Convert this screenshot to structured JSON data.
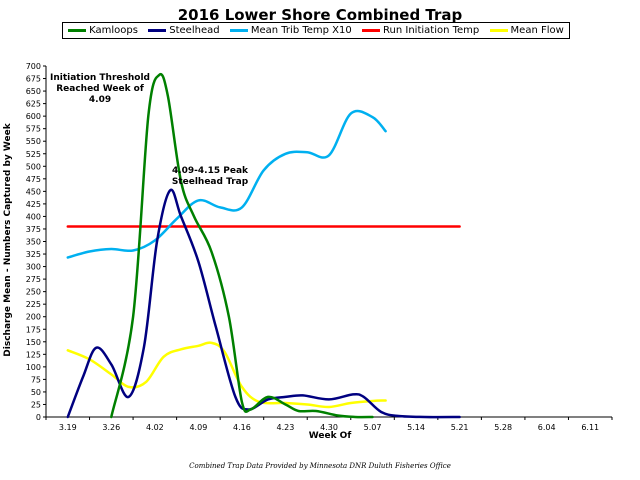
{
  "chart_data": {
    "type": "line",
    "title": "2016 Lower Shore Combined Trap",
    "xlabel": "Week Of",
    "ylabel": "Discharge Mean - Numbers Captured by Week",
    "categories": [
      "3.19",
      "3.26",
      "4.02",
      "4.09",
      "4.16",
      "4.23",
      "4.30",
      "5.07",
      "5.14",
      "5.21",
      "5.28",
      "6.04",
      "6.11"
    ],
    "yticks": [
      "0",
      "25",
      "50",
      "75",
      "100",
      "125",
      "150",
      "175",
      "200",
      "225",
      "250",
      "275",
      "300",
      "325",
      "350",
      "375",
      "400",
      "425",
      "450",
      "475",
      "500",
      "525",
      "550",
      "575",
      "600",
      "625",
      "650",
      "675",
      "700"
    ],
    "ylim": [
      0,
      700
    ],
    "grid": false,
    "legend_position": "top",
    "series": [
      {
        "name": "Kamloops",
        "color": "#008000",
        "points": [
          [
            1.0,
            0
          ],
          [
            1.5,
            200
          ],
          [
            1.85,
            600
          ],
          [
            2.1,
            682
          ],
          [
            2.3,
            640
          ],
          [
            2.6,
            470
          ],
          [
            2.9,
            400
          ],
          [
            3.3,
            330
          ],
          [
            3.7,
            200
          ],
          [
            4.0,
            30
          ],
          [
            4.2,
            15
          ],
          [
            4.6,
            40
          ],
          [
            5.0,
            25
          ],
          [
            5.3,
            12
          ],
          [
            5.7,
            12
          ],
          [
            6.2,
            3
          ],
          [
            6.6,
            0
          ],
          [
            7.0,
            0
          ]
        ]
      },
      {
        "name": "Steelhead",
        "color": "#000080",
        "points": [
          [
            0,
            0
          ],
          [
            0.35,
            80
          ],
          [
            0.65,
            138
          ],
          [
            1.0,
            105
          ],
          [
            1.4,
            40
          ],
          [
            1.75,
            140
          ],
          [
            2.05,
            350
          ],
          [
            2.35,
            452
          ],
          [
            2.6,
            400
          ],
          [
            3.0,
            310
          ],
          [
            3.4,
            180
          ],
          [
            3.85,
            40
          ],
          [
            4.15,
            15
          ],
          [
            4.6,
            35
          ],
          [
            5.0,
            40
          ],
          [
            5.4,
            43
          ],
          [
            6.0,
            35
          ],
          [
            6.55,
            45
          ],
          [
            6.8,
            40
          ],
          [
            7.2,
            10
          ],
          [
            7.6,
            2
          ],
          [
            8.2,
            0
          ],
          [
            9.0,
            0
          ]
        ]
      },
      {
        "name": "Mean Trib Temp X10",
        "color": "#00B0F0",
        "points": [
          [
            0,
            318
          ],
          [
            0.5,
            330
          ],
          [
            1.0,
            335
          ],
          [
            1.5,
            332
          ],
          [
            2.0,
            352
          ],
          [
            2.5,
            395
          ],
          [
            3.0,
            432
          ],
          [
            3.5,
            418
          ],
          [
            4.0,
            418
          ],
          [
            4.5,
            492
          ],
          [
            5.0,
            525
          ],
          [
            5.5,
            528
          ],
          [
            6.0,
            522
          ],
          [
            6.5,
            605
          ],
          [
            7.0,
            598
          ],
          [
            7.3,
            570
          ]
        ]
      },
      {
        "name": "Run Initiation Temp",
        "color": "#FF0000",
        "points": [
          [
            0,
            380
          ],
          [
            9.0,
            380
          ]
        ]
      },
      {
        "name": "Mean Flow",
        "color": "#FFFF00",
        "points": [
          [
            0,
            133
          ],
          [
            0.5,
            115
          ],
          [
            1.0,
            85
          ],
          [
            1.4,
            60
          ],
          [
            1.8,
            70
          ],
          [
            2.2,
            120
          ],
          [
            2.6,
            135
          ],
          [
            3.0,
            142
          ],
          [
            3.3,
            148
          ],
          [
            3.6,
            130
          ],
          [
            4.0,
            60
          ],
          [
            4.4,
            30
          ],
          [
            5.0,
            28
          ],
          [
            5.5,
            25
          ],
          [
            6.0,
            20
          ],
          [
            6.5,
            28
          ],
          [
            7.0,
            32
          ],
          [
            7.3,
            33
          ]
        ]
      }
    ],
    "annotations": [
      {
        "lines": [
          "Initiation Threshold",
          "Reached Week of",
          "4.09"
        ]
      },
      {
        "lines": [
          "4.09-4.15 Peak",
          "Steelhead Trap"
        ]
      }
    ],
    "credit": "Combined Trap Data Provided by Minnesota DNR Duluth Fisheries Office"
  }
}
